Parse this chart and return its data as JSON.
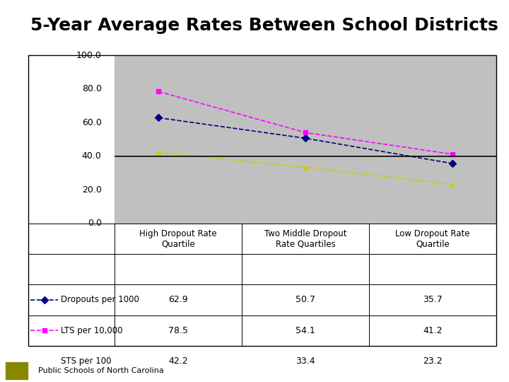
{
  "title": "5-Year Average Rates Between School Districts",
  "categories": [
    "High Dropout Rate\nQuartile",
    "Two Middle Dropout\nRate Quartiles",
    "Low Dropout Rate\nQuartile"
  ],
  "series": [
    {
      "label": "Dropouts per 1000",
      "values": [
        62.9,
        50.7,
        35.7
      ],
      "color": "#000080",
      "marker": "D",
      "markersize": 5,
      "linewidth": 1.2,
      "linestyle": "--"
    },
    {
      "label": "LTS per 10,000",
      "values": [
        78.5,
        54.1,
        41.2
      ],
      "color": "#FF00FF",
      "marker": "s",
      "markersize": 5,
      "linewidth": 1.2,
      "linestyle": "--"
    },
    {
      "label": "STS per 100",
      "values": [
        42.2,
        33.4,
        23.2
      ],
      "color": "#CCCC00",
      "marker": "^",
      "markersize": 5,
      "linewidth": 1.2,
      "linestyle": "--"
    }
  ],
  "ylim": [
    0,
    100
  ],
  "yticks": [
    0.0,
    20.0,
    40.0,
    60.0,
    80.0,
    100.0
  ],
  "plot_bg_color": "#C0C0C0",
  "fig_bg_color": "#FFFFFF",
  "title_fontsize": 18,
  "title_fontweight": "bold",
  "table_values": [
    [
      "62.9",
      "50.7",
      "35.7"
    ],
    [
      "78.5",
      "54.1",
      "41.2"
    ],
    [
      "42.2",
      "33.4",
      "23.2"
    ]
  ],
  "col_headers": [
    "High Dropout Rate\nQuartile",
    "Two Middle Dropout\nRate Quartiles",
    "Low Dropout Rate\nQuartile"
  ],
  "hline_y": 40.0,
  "hline_color": "#000000",
  "footer_text": "Public Schools of North Carolina",
  "footer_bar_color": "#999933",
  "outer_border_color": "#000000"
}
